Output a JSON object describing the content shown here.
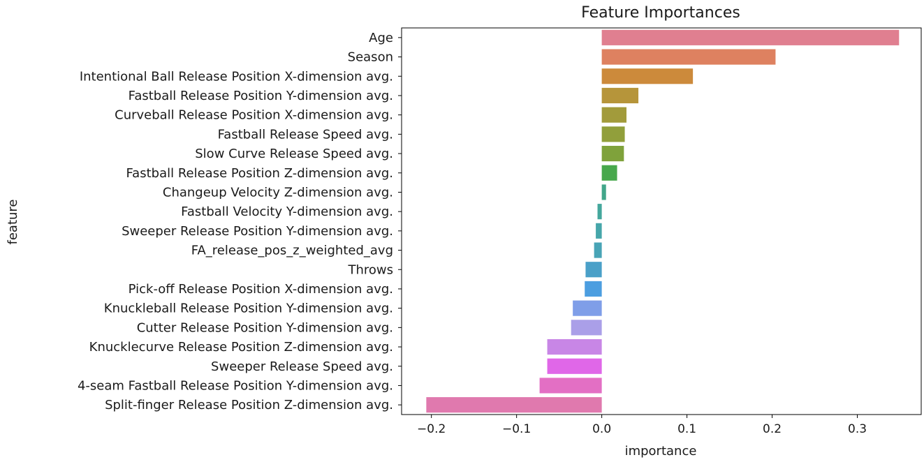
{
  "chart_data": {
    "type": "bar",
    "orientation": "horizontal",
    "title": "Feature Importances",
    "xlabel": "importance",
    "ylabel": "feature",
    "xlim": [
      -0.235,
      0.375
    ],
    "xticks": [
      -0.2,
      -0.1,
      0.0,
      0.1,
      0.2,
      0.3
    ],
    "xtick_labels": [
      "−0.2",
      "−0.1",
      "0.0",
      "0.1",
      "0.2",
      "0.3"
    ],
    "grid": false,
    "categories": [
      "Age",
      "Season",
      "Intentional Ball Release Position X-dimension avg.",
      "Fastball Release Position Y-dimension avg.",
      "Curveball Release Position X-dimension avg.",
      "Fastball Release Speed avg.",
      "Slow Curve Release Speed avg.",
      "Fastball Release Position Z-dimension avg.",
      "Changeup Velocity Z-dimension avg.",
      "Fastball Velocity Y-dimension avg.",
      "Sweeper Release Position Y-dimension avg.",
      "FA_release_pos_z_weighted_avg",
      "Throws",
      "Pick-off Release Position X-dimension avg.",
      "Knuckleball Release Position Y-dimension avg.",
      "Cutter Release Position Y-dimension avg.",
      "Knucklecurve Release Position Z-dimension avg.",
      "Sweeper Release Speed avg.",
      "4-seam Fastball Release Position Y-dimension avg.",
      "Split-finger Release Position Z-dimension avg."
    ],
    "values": [
      0.349,
      0.204,
      0.107,
      0.043,
      0.029,
      0.027,
      0.026,
      0.018,
      0.005,
      -0.005,
      -0.007,
      -0.009,
      -0.019,
      -0.02,
      -0.034,
      -0.036,
      -0.064,
      -0.064,
      -0.073,
      -0.206
    ],
    "colors": [
      "#e07f90",
      "#de8160",
      "#cc8a3b",
      "#b6953a",
      "#a29b3b",
      "#919f3b",
      "#7fa23b",
      "#48a84c",
      "#42a68a",
      "#44a79c",
      "#46a6aa",
      "#48a4b6",
      "#4aa0c8",
      "#4c9ee0",
      "#7f9ee8",
      "#aa9fe8",
      "#c886e6",
      "#e067e8",
      "#e36fc4",
      "#e079ae"
    ]
  }
}
